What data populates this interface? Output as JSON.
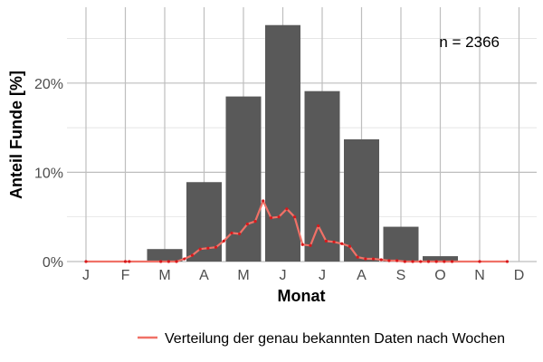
{
  "chart_data": {
    "type": "bar",
    "categories": [
      "J",
      "F",
      "M",
      "A",
      "M",
      "J",
      "J",
      "A",
      "S",
      "O",
      "N",
      "D"
    ],
    "series": [
      {
        "values": [
          0.0,
          0.0,
          1.4,
          8.9,
          18.5,
          26.5,
          19.1,
          13.7,
          3.9,
          0.6,
          0.0,
          0.0
        ]
      }
    ],
    "line_series": {
      "name": "Verteilung der genau bekannten Daten nach Wochen",
      "x": [
        0.0,
        1.0,
        1.1,
        1.9,
        2.1,
        2.3,
        2.5,
        2.7,
        2.9,
        3.1,
        3.3,
        3.5,
        3.7,
        3.9,
        4.1,
        4.3,
        4.5,
        4.7,
        4.9,
        5.1,
        5.3,
        5.5,
        5.7,
        5.9,
        6.1,
        6.3,
        6.5,
        6.7,
        6.9,
        7.1,
        7.3,
        7.5,
        7.7,
        7.9,
        8.1,
        8.3,
        8.5,
        8.7,
        8.9,
        9.1,
        9.3,
        10.0,
        10.7
      ],
      "y": [
        0.0,
        0.0,
        0.0,
        0.0,
        0.0,
        0.0,
        0.3,
        0.7,
        1.4,
        1.5,
        1.6,
        2.3,
        3.2,
        3.1,
        4.2,
        4.5,
        6.8,
        4.9,
        5.0,
        5.9,
        5.0,
        1.9,
        1.8,
        4.0,
        2.3,
        2.2,
        2.0,
        1.7,
        0.5,
        0.3,
        0.3,
        0.2,
        0.1,
        0.1,
        0.0,
        0.0,
        0.0,
        0.0,
        0.0,
        0.0,
        0.0,
        0.0,
        0.0
      ],
      "color": "#f07167"
    },
    "xlabel": "Monat",
    "ylabel": "Anteil Funde [%]",
    "yticks": [
      "0%",
      "10%",
      "20%"
    ],
    "ytick_values": [
      0,
      10,
      20
    ],
    "ylim": [
      0,
      28.5
    ],
    "annotation": "n = 2366",
    "grid": true,
    "legend_position": "bottom",
    "bar_color": "#595959",
    "grid_color": "#bebebe"
  }
}
